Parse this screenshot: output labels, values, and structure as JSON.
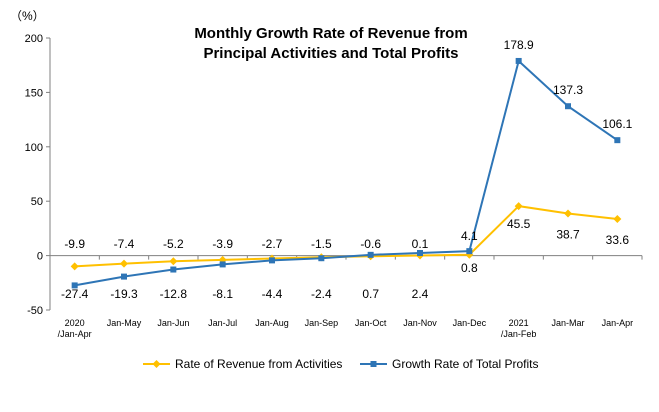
{
  "chart_data": {
    "type": "line",
    "title_line1": "Monthly Growth Rate of Revenue from",
    "title_line2": "Principal Activities  and Total Profits",
    "ylabel": "（%）",
    "ylim": [
      -50,
      200
    ],
    "yticks": [
      200,
      150,
      100,
      50,
      0,
      -50
    ],
    "categories": [
      [
        "2020",
        "/Jan-Apr"
      ],
      [
        "Jan-May"
      ],
      [
        "Jan-Jun"
      ],
      [
        "Jan-Jul"
      ],
      [
        "Jan-Aug"
      ],
      [
        "Jan-Sep"
      ],
      [
        "Jan-Oct"
      ],
      [
        "Jan-Nov"
      ],
      [
        "Jan-Dec"
      ],
      [
        "2021",
        "/Jan-Feb"
      ],
      [
        "Jan-Mar"
      ],
      [
        "Jan-Apr"
      ]
    ],
    "series": [
      {
        "name": "Rate of Revenue from Activities",
        "color": "#FFC000",
        "marker": "diamond",
        "values": [
          -9.9,
          -7.4,
          -5.2,
          -3.9,
          -2.7,
          -1.5,
          -0.6,
          0.1,
          0.8,
          45.5,
          38.7,
          33.6
        ],
        "labels": [
          "-9.9",
          "-7.4",
          "-5.2",
          "-3.9",
          "-2.7",
          "-1.5",
          "-0.6",
          "0.1",
          "0.8",
          "45.5",
          "38.7",
          "33.6"
        ]
      },
      {
        "name": "Growth Rate of Total Profits",
        "color": "#2E75B6",
        "marker": "square",
        "values": [
          -27.4,
          -19.3,
          -12.8,
          -8.1,
          -4.4,
          -2.4,
          0.7,
          2.4,
          4.1,
          178.9,
          137.3,
          106.1
        ],
        "labels": [
          "-27.4",
          "-19.3",
          "-12.8",
          "-8.1",
          "-4.4",
          "-2.4",
          "0.7",
          "2.4",
          "4.1",
          "178.9",
          "137.3",
          "106.1"
        ]
      }
    ],
    "legend_position": "bottom",
    "grid": false
  }
}
